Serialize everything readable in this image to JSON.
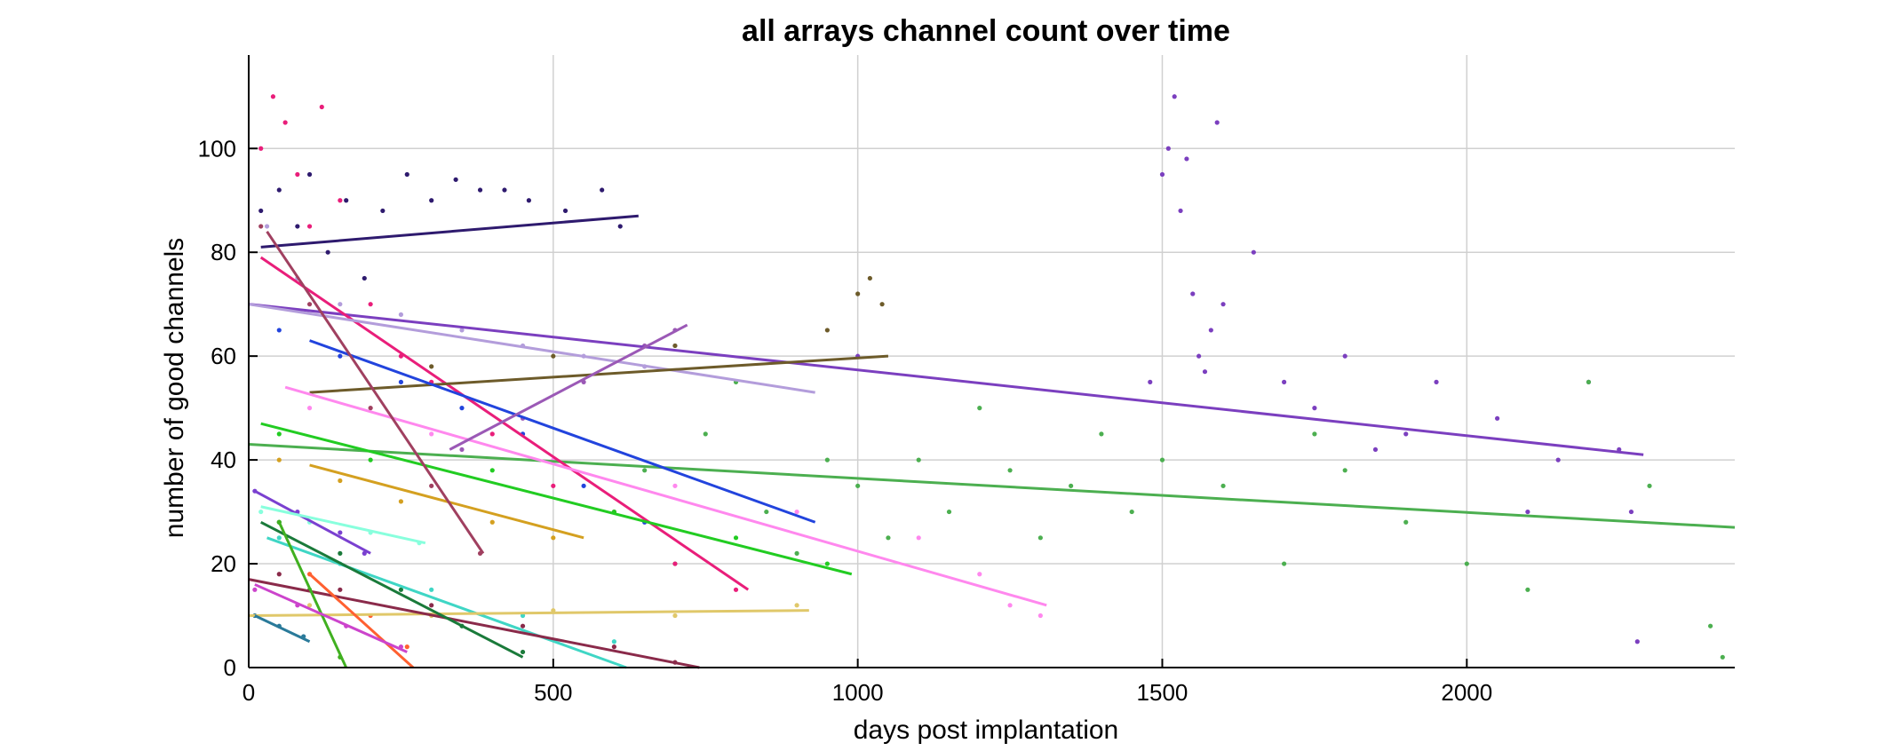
{
  "chart_data": {
    "type": "scatter",
    "title": "all arrays channel count over time",
    "xlabel": "days post implantation",
    "ylabel": "number of good channels",
    "xlim": [
      0,
      2440
    ],
    "ylim": [
      0,
      118
    ],
    "xticks": [
      0,
      500,
      1000,
      1500,
      2000
    ],
    "yticks": [
      0,
      20,
      40,
      60,
      80,
      100
    ],
    "xtick_labels": [
      "0",
      "500",
      "1000",
      "1500",
      "2000"
    ],
    "ytick_labels": [
      "0",
      "20",
      "40",
      "60",
      "80",
      "100"
    ],
    "grid": true,
    "legend": "none",
    "series": [
      {
        "color": "#7b3fbf",
        "x": [
          1000,
          1480,
          1500,
          1510,
          1520,
          1530,
          1540,
          1550,
          1560,
          1570,
          1580,
          1590,
          1600,
          1650,
          1700,
          1750,
          1800,
          1850,
          1900,
          1950,
          2050,
          2100,
          2150,
          2200,
          2250,
          2270,
          2280
        ],
        "y": [
          60,
          55,
          95,
          100,
          110,
          88,
          98,
          72,
          60,
          57,
          65,
          105,
          70,
          80,
          55,
          50,
          60,
          42,
          45,
          55,
          48,
          30,
          40,
          55,
          42,
          30,
          5
        ],
        "fit": [
          [
            0,
            70
          ],
          [
            2290,
            41
          ]
        ]
      },
      {
        "color": "#4caf50",
        "x": [
          650,
          700,
          750,
          800,
          850,
          900,
          950,
          1000,
          1050,
          1100,
          1150,
          1200,
          1250,
          1300,
          1350,
          1400,
          1450,
          1500,
          1600,
          1700,
          1750,
          1800,
          1900,
          2000,
          2100,
          2200,
          2300,
          2400,
          2420
        ],
        "y": [
          38,
          20,
          45,
          55,
          30,
          22,
          40,
          35,
          25,
          40,
          30,
          50,
          38,
          25,
          35,
          45,
          30,
          40,
          35,
          20,
          45,
          38,
          28,
          20,
          15,
          55,
          35,
          8,
          2
        ],
        "fit": [
          [
            0,
            43
          ],
          [
            2440,
            27
          ]
        ]
      },
      {
        "color": "#2e1a6e",
        "x": [
          20,
          50,
          80,
          100,
          130,
          160,
          190,
          220,
          260,
          300,
          340,
          380,
          420,
          460,
          520,
          580,
          610
        ],
        "y": [
          88,
          92,
          85,
          95,
          80,
          90,
          75,
          88,
          95,
          90,
          94,
          92,
          92,
          90,
          88,
          92,
          85
        ],
        "fit": [
          [
            20,
            81
          ],
          [
            640,
            87
          ]
        ]
      },
      {
        "color": "#e91e7a",
        "x": [
          20,
          40,
          60,
          80,
          100,
          120,
          150,
          200,
          250,
          300,
          400,
          500,
          600,
          700,
          800
        ],
        "y": [
          100,
          110,
          105,
          95,
          85,
          108,
          90,
          70,
          60,
          55,
          45,
          35,
          30,
          20,
          15
        ],
        "fit": [
          [
            20,
            79
          ],
          [
            820,
            15
          ]
        ]
      },
      {
        "color": "#b39ddb",
        "x": [
          30,
          80,
          150,
          250,
          350,
          450,
          550,
          650,
          700
        ],
        "y": [
          85,
          75,
          70,
          68,
          65,
          62,
          60,
          58,
          62
        ],
        "fit": [
          [
            0,
            70
          ],
          [
            930,
            53
          ]
        ]
      },
      {
        "color": "#6d5b2a",
        "x": [
          300,
          500,
          700,
          950,
          1000,
          1020,
          1040
        ],
        "y": [
          58,
          60,
          62,
          65,
          72,
          75,
          70
        ],
        "fit": [
          [
            100,
            53
          ],
          [
            1050,
            60
          ]
        ]
      },
      {
        "color": "#2244dd",
        "x": [
          50,
          150,
          250,
          350,
          450,
          550,
          650
        ],
        "y": [
          65,
          60,
          55,
          50,
          45,
          35,
          28
        ],
        "fit": [
          [
            100,
            63
          ],
          [
            930,
            28
          ]
        ]
      },
      {
        "color": "#ff88ee",
        "x": [
          100,
          300,
          500,
          700,
          900,
          1100,
          1200,
          1250,
          1300
        ],
        "y": [
          50,
          45,
          40,
          35,
          30,
          25,
          18,
          12,
          10
        ],
        "fit": [
          [
            60,
            54
          ],
          [
            1310,
            12
          ]
        ]
      },
      {
        "color": "#22cc22",
        "x": [
          50,
          200,
          400,
          600,
          800,
          950
        ],
        "y": [
          45,
          40,
          38,
          30,
          25,
          20
        ],
        "fit": [
          [
            20,
            47
          ],
          [
            990,
            18
          ]
        ]
      },
      {
        "color": "#3fd6c5",
        "x": [
          50,
          150,
          300,
          450,
          600
        ],
        "y": [
          25,
          20,
          15,
          10,
          5
        ],
        "fit": [
          [
            30,
            25
          ],
          [
            620,
            0
          ]
        ]
      },
      {
        "color": "#d4a020",
        "x": [
          50,
          150,
          250,
          400,
          500
        ],
        "y": [
          40,
          36,
          32,
          28,
          25
        ],
        "fit": [
          [
            100,
            39
          ],
          [
            550,
            25
          ]
        ]
      },
      {
        "color": "#e0c86a",
        "x": [
          100,
          300,
          500,
          700,
          900
        ],
        "y": [
          12,
          10,
          11,
          10,
          12
        ],
        "fit": [
          [
            0,
            10
          ],
          [
            920,
            11
          ]
        ]
      },
      {
        "color": "#8a2a4a",
        "x": [
          50,
          150,
          300,
          450,
          600,
          700
        ],
        "y": [
          18,
          15,
          12,
          8,
          4,
          1
        ],
        "fit": [
          [
            0,
            17
          ],
          [
            740,
            0
          ]
        ]
      },
      {
        "color": "#1a7a3a",
        "x": [
          50,
          150,
          250,
          350,
          450
        ],
        "y": [
          28,
          22,
          15,
          8,
          3
        ],
        "fit": [
          [
            20,
            28
          ],
          [
            450,
            2
          ]
        ]
      },
      {
        "color": "#9b59b6",
        "x": [
          350,
          450,
          550,
          650,
          700
        ],
        "y": [
          42,
          48,
          55,
          62,
          65
        ],
        "fit": [
          [
            330,
            42
          ],
          [
            720,
            66
          ]
        ]
      },
      {
        "color": "#a04060",
        "x": [
          20,
          100,
          200,
          300,
          380
        ],
        "y": [
          85,
          70,
          50,
          35,
          22
        ],
        "fit": [
          [
            30,
            84
          ],
          [
            385,
            22
          ]
        ]
      },
      {
        "color": "#7a40d0",
        "x": [
          10,
          80,
          150,
          190
        ],
        "y": [
          34,
          30,
          26,
          22
        ],
        "fit": [
          [
            10,
            34
          ],
          [
            200,
            22
          ]
        ]
      },
      {
        "color": "#88ffdd",
        "x": [
          20,
          100,
          200,
          280
        ],
        "y": [
          30,
          28,
          26,
          24
        ],
        "fit": [
          [
            20,
            31
          ],
          [
            290,
            24
          ]
        ]
      },
      {
        "color": "#40b020",
        "x": [
          50,
          100,
          150
        ],
        "y": [
          28,
          15,
          2
        ],
        "fit": [
          [
            50,
            28
          ],
          [
            160,
            0
          ]
        ]
      },
      {
        "color": "#ff6030",
        "x": [
          100,
          200,
          260
        ],
        "y": [
          18,
          10,
          4
        ],
        "fit": [
          [
            100,
            18
          ],
          [
            270,
            0
          ]
        ]
      },
      {
        "color": "#2a7a9a",
        "x": [
          10,
          50,
          90
        ],
        "y": [
          10,
          8,
          6
        ],
        "fit": [
          [
            10,
            10
          ],
          [
            100,
            5
          ]
        ]
      },
      {
        "color": "#cc44cc",
        "x": [
          10,
          80,
          160,
          250
        ],
        "y": [
          15,
          12,
          8,
          4
        ],
        "fit": [
          [
            10,
            16
          ],
          [
            260,
            3
          ]
        ]
      }
    ]
  }
}
